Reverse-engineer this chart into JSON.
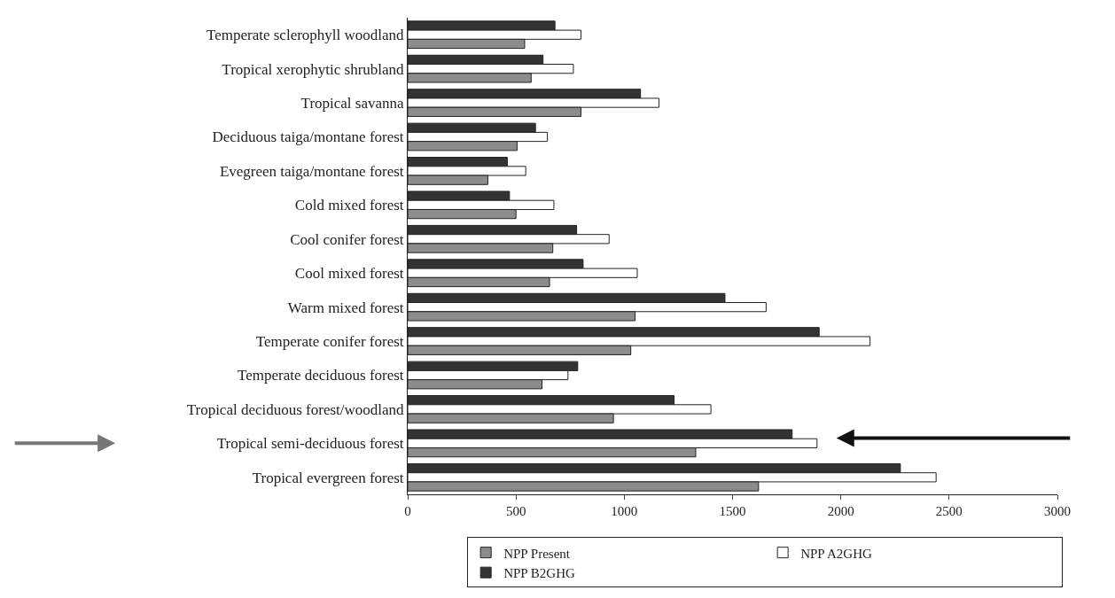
{
  "chart_data": {
    "type": "bar",
    "orientation": "horizontal",
    "categories": [
      "Temperate sclerophyll woodland",
      "Tropical xerophytic shrubland",
      "Tropical savanna",
      "Deciduous taiga/montane forest",
      "Evegreen taiga/montane forest",
      "Cold mixed forest",
      "Cool conifer forest",
      "Cool mixed forest",
      "Warm mixed forest",
      "Temperate conifer forest",
      "Temperate deciduous forest",
      "Tropical deciduous forest/woodland",
      "Tropical semi-deciduous forest",
      "Tropical evergreen forest"
    ],
    "series": [
      {
        "name": "NPP Present",
        "color": "#8c8c8c",
        "values": [
          540,
          570,
          800,
          505,
          370,
          500,
          670,
          655,
          1050,
          1030,
          620,
          950,
          1330,
          1620
        ]
      },
      {
        "name": "NPP A2GHG",
        "color": "#ffffff",
        "values": [
          800,
          765,
          1160,
          645,
          545,
          675,
          930,
          1060,
          1655,
          2135,
          740,
          1400,
          1890,
          2440
        ]
      },
      {
        "name": "NPP B2GHG",
        "color": "#333333",
        "values": [
          680,
          625,
          1075,
          590,
          460,
          470,
          780,
          810,
          1465,
          1900,
          785,
          1230,
          1775,
          2275
        ]
      }
    ],
    "xlim": [
      0,
      3000
    ],
    "xticks": [
      0,
      500,
      1000,
      1500,
      2000,
      2500,
      3000
    ],
    "legend": "bottom"
  }
}
